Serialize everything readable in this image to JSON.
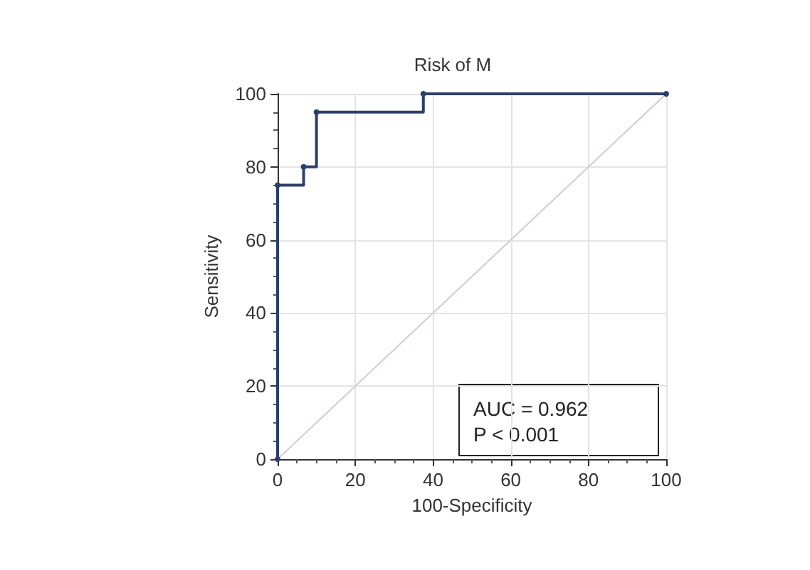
{
  "chart_data": {
    "type": "step",
    "title": "Risk of M",
    "xlabel": "100-Specificity",
    "ylabel": "Sensitivity",
    "series": [
      {
        "color": "#2b3f6b",
        "x": [
          0,
          0,
          6.7,
          10,
          37.5,
          100
        ],
        "values": [
          0,
          75,
          80,
          95,
          100,
          100
        ],
        "marker": "circle"
      },
      {
        "type": "line",
        "color": "#d9c9c9",
        "x": [
          0,
          100
        ],
        "values": [
          0,
          100
        ],
        "marker": "none"
      }
    ],
    "xlim": [
      0,
      100
    ],
    "xticks": [
      0,
      20,
      40,
      60,
      80,
      100
    ],
    "ylim": [
      0,
      100
    ],
    "yticks": [
      0,
      20,
      40,
      60,
      80,
      100
    ],
    "grid": true,
    "annotations": [
      "AUC = 0.962",
      "P < 0.001"
    ]
  }
}
